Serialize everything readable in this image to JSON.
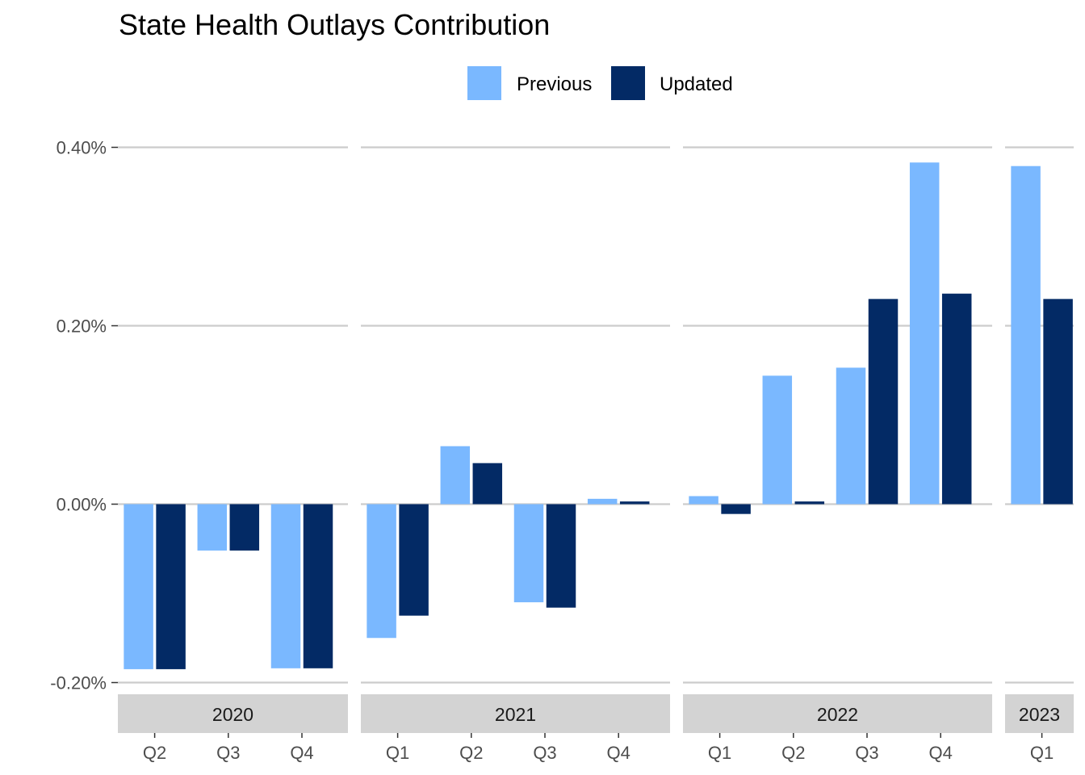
{
  "chart_data": {
    "type": "bar",
    "title": "State Health Outlays Contribution",
    "xlabel": "",
    "ylabel": "",
    "ylim": [
      -0.2,
      0.4
    ],
    "y_ticks": [
      "0.40%",
      "0.20%",
      "0.00%",
      "-0.20%"
    ],
    "y_tick_values": [
      0.4,
      0.2,
      0.0,
      -0.2
    ],
    "grid": "horizontal",
    "legend_position": "top",
    "series": [
      {
        "name": "Previous",
        "color": "#7ab8ff"
      },
      {
        "name": "Updated",
        "color": "#032a65"
      }
    ],
    "facets": [
      {
        "label": "2020",
        "quarters": [
          {
            "label": "Q2",
            "values": [
              -0.185,
              -0.185
            ]
          },
          {
            "label": "Q3",
            "values": [
              -0.052,
              -0.052
            ]
          },
          {
            "label": "Q4",
            "values": [
              -0.184,
              -0.184
            ]
          }
        ]
      },
      {
        "label": "2021",
        "quarters": [
          {
            "label": "Q1",
            "values": [
              -0.15,
              -0.125
            ]
          },
          {
            "label": "Q2",
            "values": [
              0.065,
              0.046
            ]
          },
          {
            "label": "Q3",
            "values": [
              -0.11,
              -0.116
            ]
          },
          {
            "label": "Q4",
            "values": [
              0.006,
              0.003
            ]
          }
        ]
      },
      {
        "label": "2022",
        "quarters": [
          {
            "label": "Q1",
            "values": [
              0.009,
              -0.011
            ]
          },
          {
            "label": "Q2",
            "values": [
              0.144,
              0.003
            ]
          },
          {
            "label": "Q3",
            "values": [
              0.153,
              0.23
            ]
          },
          {
            "label": "Q4",
            "values": [
              0.383,
              0.236
            ]
          }
        ]
      },
      {
        "label": "2023",
        "quarters": [
          {
            "label": "Q1",
            "values": [
              0.379,
              0.23
            ]
          }
        ]
      }
    ]
  }
}
